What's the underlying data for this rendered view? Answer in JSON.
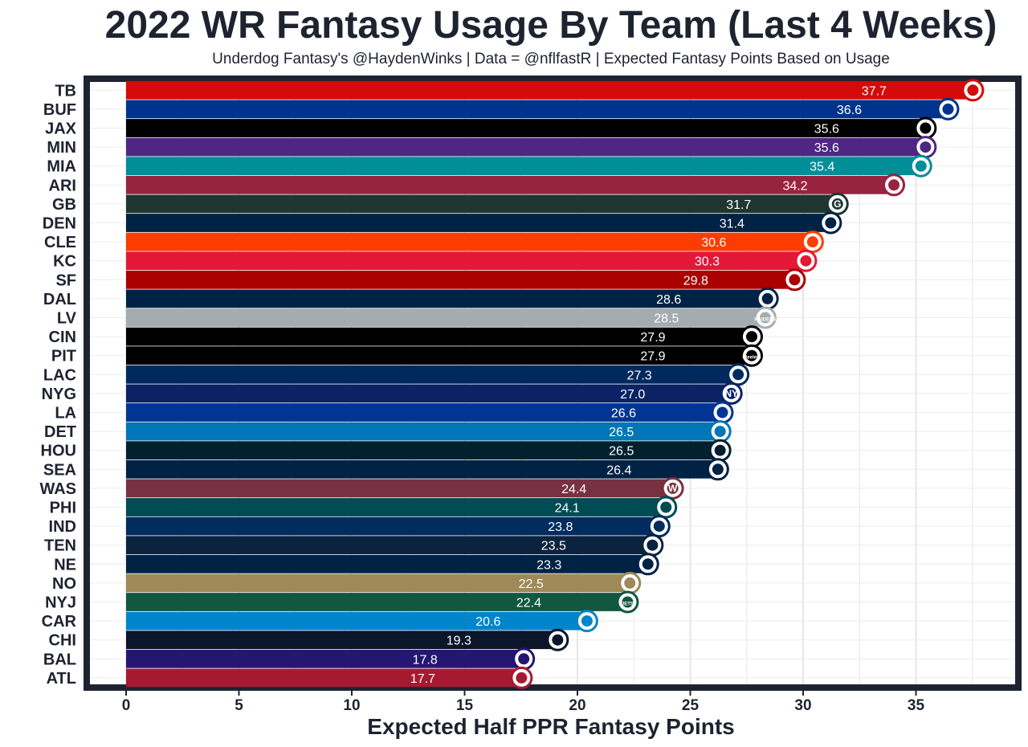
{
  "chart_data": {
    "type": "bar",
    "orientation": "horizontal",
    "title": "2022 WR Fantasy Usage By Team (Last 4 Weeks)",
    "subtitle": "Underdog Fantasy's @HaydenWinks | Data = @nflfastR | Expected Fantasy Points Based on Usage",
    "xlabel": "Expected Half PPR Fantasy Points",
    "ylabel": "",
    "xlim": [
      0,
      38.5
    ],
    "xticks": [
      0,
      5,
      10,
      15,
      20,
      25,
      30,
      35
    ],
    "grid": true,
    "categories": [
      "TB",
      "BUF",
      "JAX",
      "MIN",
      "MIA",
      "ARI",
      "GB",
      "DEN",
      "CLE",
      "KC",
      "SF",
      "DAL",
      "LV",
      "CIN",
      "PIT",
      "LAC",
      "NYG",
      "LA",
      "DET",
      "HOU",
      "SEA",
      "WAS",
      "PHI",
      "IND",
      "TEN",
      "NE",
      "NO",
      "NYJ",
      "CAR",
      "CHI",
      "BAL",
      "ATL"
    ],
    "values": [
      37.7,
      36.6,
      35.6,
      35.6,
      35.4,
      34.2,
      31.7,
      31.4,
      30.6,
      30.3,
      29.8,
      28.6,
      28.5,
      27.9,
      27.9,
      27.3,
      27.0,
      26.6,
      26.5,
      26.5,
      26.4,
      24.4,
      24.1,
      23.8,
      23.5,
      23.3,
      22.5,
      22.4,
      20.6,
      19.3,
      17.8,
      17.7
    ],
    "value_labels": [
      "37.7",
      "36.6",
      "35.6",
      "35.6",
      "35.4",
      "34.2",
      "31.7",
      "31.4",
      "30.6",
      "30.3",
      "29.8",
      "28.6",
      "28.5",
      "27.9",
      "27.9",
      "27.3",
      "27.0",
      "26.6",
      "26.5",
      "26.5",
      "26.4",
      "24.4",
      "24.1",
      "23.8",
      "23.5",
      "23.3",
      "22.5",
      "22.4",
      "20.6",
      "19.3",
      "17.8",
      "17.7"
    ],
    "colors": [
      "#D50A0A",
      "#00338D",
      "#000000",
      "#4F2683",
      "#008E97",
      "#97233F",
      "#203731",
      "#002244",
      "#FF3C00",
      "#E31837",
      "#AA0000",
      "#002244",
      "#A5ACAF",
      "#000000",
      "#000000",
      "#002A5E",
      "#0B2265",
      "#003594",
      "#0076B6",
      "#03202F",
      "#002244",
      "#773141",
      "#004C54",
      "#002C5F",
      "#0C2340",
      "#002244",
      "#9F8958",
      "#125740",
      "#0085CA",
      "#0B162A",
      "#241773",
      "#A71930"
    ],
    "team_logos": [
      "buccaneers-logo",
      "bills-logo",
      "jaguars-logo",
      "vikings-logo",
      "dolphins-logo",
      "cardinals-logo",
      "packers-logo",
      "broncos-logo",
      "browns-logo",
      "chiefs-logo",
      "49ers-logo",
      "cowboys-logo",
      "raiders-logo",
      "bengals-logo",
      "steelers-logo",
      "chargers-logo",
      "giants-logo",
      "rams-logo",
      "lions-logo",
      "texans-logo",
      "seahawks-logo",
      "commanders-logo",
      "eagles-logo",
      "colts-logo",
      "titans-logo",
      "patriots-logo",
      "saints-logo",
      "jets-logo",
      "panthers-logo",
      "bears-logo",
      "ravens-logo",
      "falcons-logo"
    ],
    "logo_text": {
      "GB": "G",
      "NYG": "NY",
      "WAS": "W",
      "NYJ": "JETS",
      "LV": "RAIDERS",
      "PIT": "Steelers"
    }
  }
}
